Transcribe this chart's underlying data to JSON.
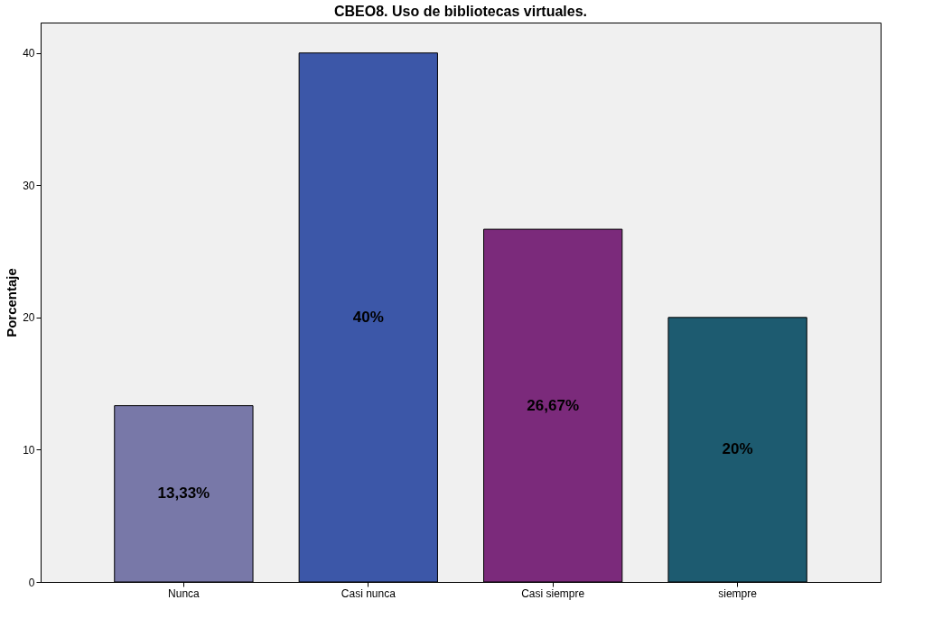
{
  "chart_data": {
    "type": "bar",
    "title": "CBEO8. Uso de bibliotecas virtuales.",
    "ylabel": "Porcentaje",
    "categories": [
      "Nunca",
      "Casi nunca",
      "Casi siempre",
      "siempre"
    ],
    "values": [
      13.33,
      40,
      26.67,
      20
    ],
    "colors": [
      "#7878a8",
      "#3c57a8",
      "#7b2a7b",
      "#1d5b70"
    ],
    "value_labels": [
      "13,33%",
      "40%",
      "26,67%",
      "20%"
    ],
    "ylim": [
      0,
      42.3
    ],
    "yticks": [
      0,
      10,
      20,
      30,
      40
    ],
    "grid": false
  }
}
